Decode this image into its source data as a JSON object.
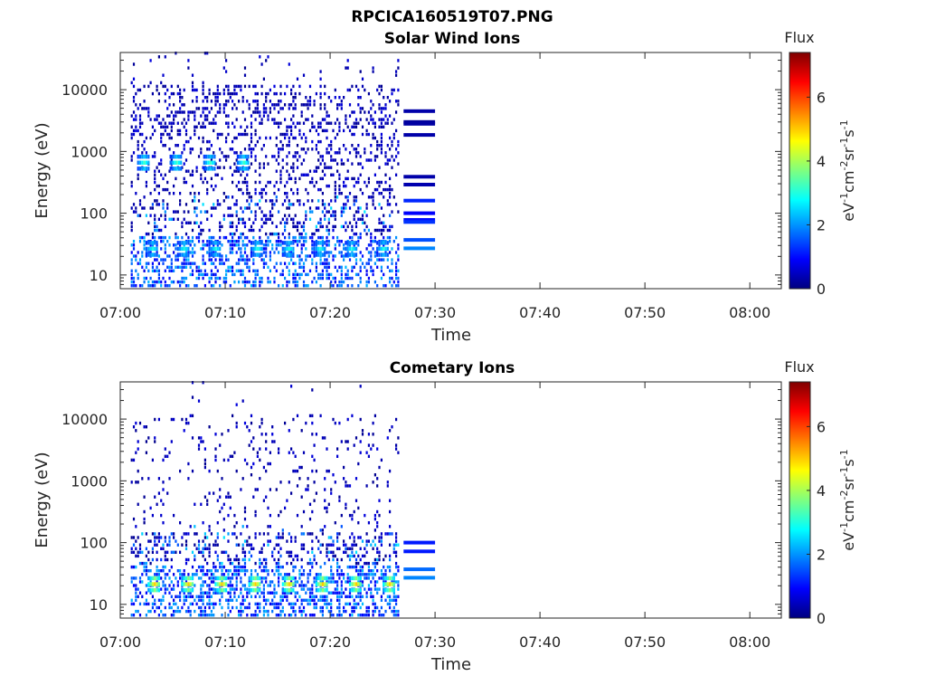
{
  "figure": {
    "title": "RPCICA160519T07.PNG"
  },
  "colormap": [
    "#00007f",
    "#0000ff",
    "#007fff",
    "#00ffff",
    "#7fff7f",
    "#ffff00",
    "#ff7f00",
    "#ff0000",
    "#7f0000"
  ],
  "chart_data": [
    {
      "type": "heatmap",
      "title": "Solar Wind Ions",
      "xlabel": "Time",
      "ylabel": "Energy (eV)",
      "y_scale": "log",
      "ylim": [
        6,
        40000
      ],
      "xlim": [
        "07:00",
        "08:03"
      ],
      "x_ticks": [
        "07:00",
        "07:10",
        "07:20",
        "07:30",
        "07:40",
        "07:50",
        "08:00"
      ],
      "y_ticks": [
        "10",
        "100",
        "1000",
        "10000"
      ],
      "colorbar": {
        "label": "Flux",
        "unit": "eV-1cm-2sr-1s-1",
        "range": [
          0,
          7.4
        ],
        "ticks": [
          "0",
          "2",
          "4",
          "6"
        ]
      },
      "data_start": "07:01",
      "data_end": "07:26.5",
      "summary_bands": {
        "x_range": [
          "07:27",
          "07:30"
        ],
        "bands": [
          {
            "energy": 4500,
            "flux": 0.3
          },
          {
            "energy": 3000,
            "flux": 0.2
          },
          {
            "energy": 2800,
            "flux": 0.25
          },
          {
            "energy": 1850,
            "flux": 0.3
          },
          {
            "energy": 390,
            "flux": 0.3
          },
          {
            "energy": 290,
            "flux": 0.35
          },
          {
            "energy": 160,
            "flux": 1.2
          },
          {
            "energy": 100,
            "flux": 0.9
          },
          {
            "energy": 78,
            "flux": 1.0
          },
          {
            "energy": 72,
            "flux": 1.3
          },
          {
            "energy": 37,
            "flux": 1.5
          },
          {
            "energy": 27,
            "flux": 1.9
          }
        ]
      },
      "features": [
        {
          "energy": 25,
          "flux": 3.0,
          "times": [
            "07:03",
            "07:06",
            "07:09",
            "07:13",
            "07:16",
            "07:19",
            "07:22",
            "07:25"
          ]
        },
        {
          "energy": 620,
          "flux": 3.2,
          "times": [
            "07:02.2",
            "07:05.3",
            "07:08.5",
            "07:11.7"
          ]
        }
      ]
    },
    {
      "type": "heatmap",
      "title": "Cometary Ions",
      "xlabel": "Time",
      "ylabel": "Energy (eV)",
      "y_scale": "log",
      "ylim": [
        6,
        40000
      ],
      "xlim": [
        "07:00",
        "08:03"
      ],
      "x_ticks": [
        "07:00",
        "07:10",
        "07:20",
        "07:30",
        "07:40",
        "07:50",
        "08:00"
      ],
      "y_ticks": [
        "10",
        "100",
        "1000",
        "10000"
      ],
      "colorbar": {
        "label": "Flux",
        "unit": "eV-1cm-2sr-1s-1",
        "range": [
          0,
          7.4
        ],
        "ticks": [
          "0",
          "2",
          "4",
          "6"
        ]
      },
      "data_start": "07:01",
      "data_end": "07:26.5",
      "summary_bands": {
        "x_range": [
          "07:27",
          "07:30"
        ],
        "bands": [
          {
            "energy": 100,
            "flux": 1.1
          },
          {
            "energy": 72,
            "flux": 1.1
          },
          {
            "energy": 37,
            "flux": 1.7
          },
          {
            "energy": 27,
            "flux": 1.9
          }
        ]
      },
      "features": [
        {
          "energy": 20,
          "flux": 5.0,
          "times": [
            "07:03.2",
            "07:06.4",
            "07:09.6",
            "07:12.8",
            "07:16",
            "07:19.2",
            "07:22.4",
            "07:25.6"
          ]
        }
      ]
    }
  ]
}
